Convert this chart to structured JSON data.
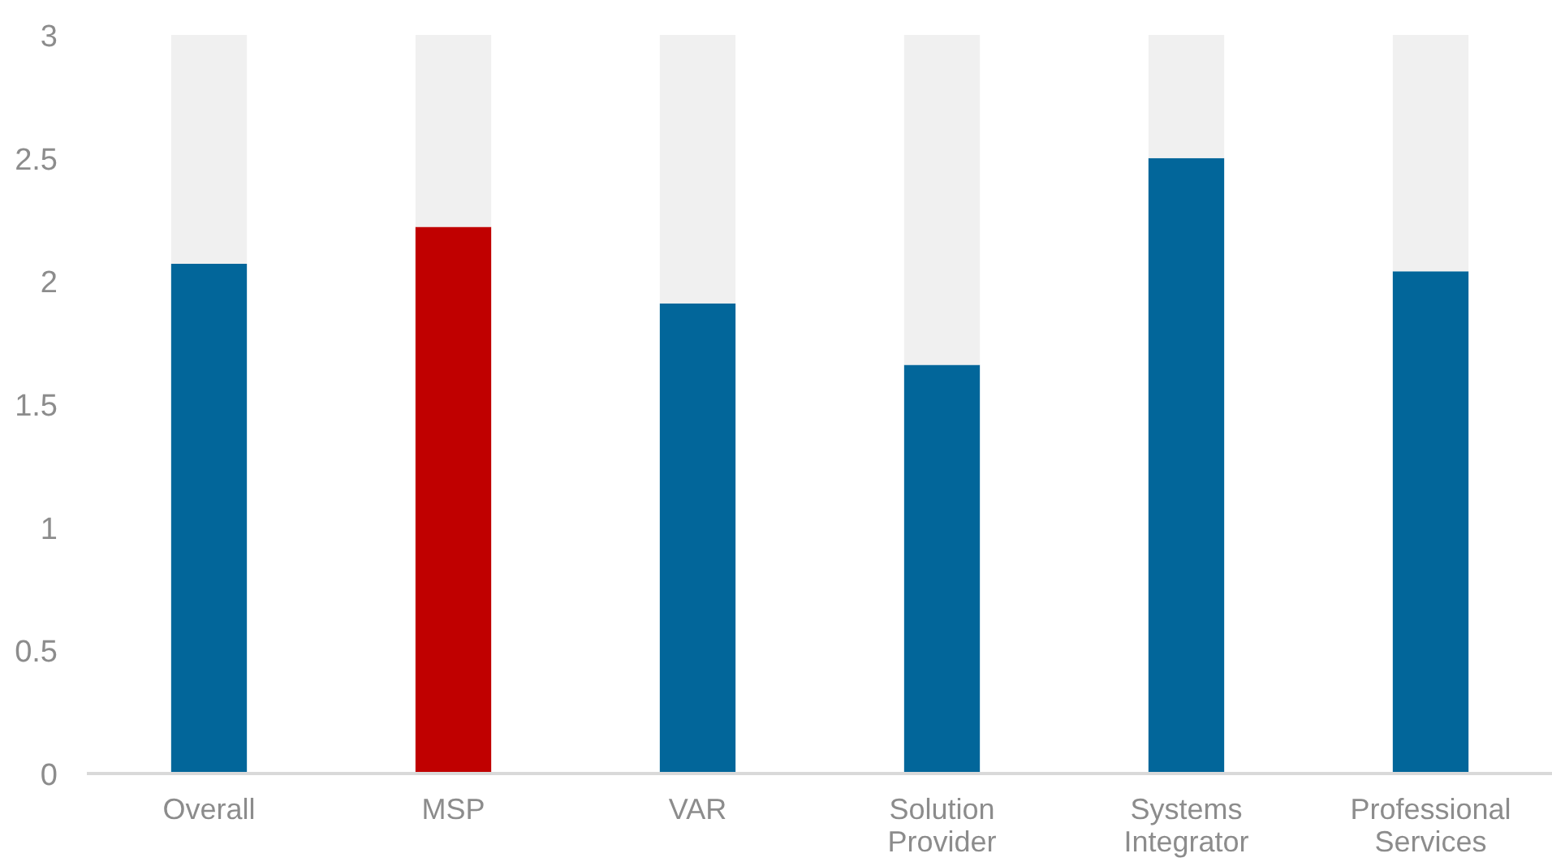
{
  "chart_data": {
    "type": "bar",
    "stacked": true,
    "categories": [
      "Overall",
      "MSP",
      "VAR",
      "Solution Provider",
      "Systems Integrator",
      "Professional Services"
    ],
    "series": [
      {
        "colors": [
          "#02669a",
          "#c00000",
          "#02669a",
          "#02669a",
          "#02669a",
          "#02669a"
        ],
        "values": [
          2.07,
          2.22,
          1.91,
          1.66,
          2.5,
          2.04
        ]
      },
      {
        "color": "#f0f0f0",
        "values": [
          0.93,
          0.78,
          1.09,
          1.34,
          0.5,
          0.96
        ]
      }
    ],
    "ylim": [
      0,
      3
    ],
    "yticks": [
      0,
      0.5,
      1,
      1.5,
      2,
      2.5,
      3
    ],
    "grid": false
  }
}
